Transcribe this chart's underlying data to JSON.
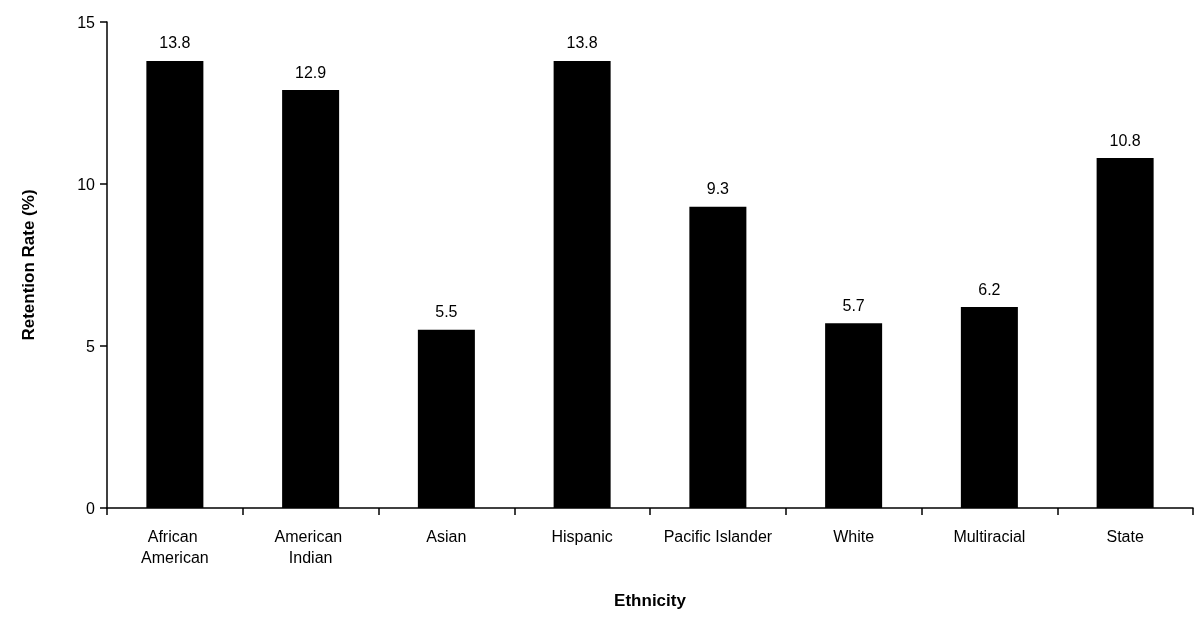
{
  "chart_data": {
    "type": "bar",
    "xlabel": "Ethnicity",
    "ylabel": "Retention Rate (%)",
    "categories": [
      "African American",
      "American Indian",
      "Asian",
      "Hispanic",
      "Pacific Islander",
      "White",
      "Multiracial",
      "State"
    ],
    "values": [
      13.8,
      12.9,
      5.5,
      13.8,
      9.3,
      5.7,
      6.2,
      10.8
    ],
    "color": "#000000",
    "ylim": [
      0,
      15
    ],
    "yticks": [
      0,
      5,
      10,
      15
    ],
    "data_labels": true
  }
}
